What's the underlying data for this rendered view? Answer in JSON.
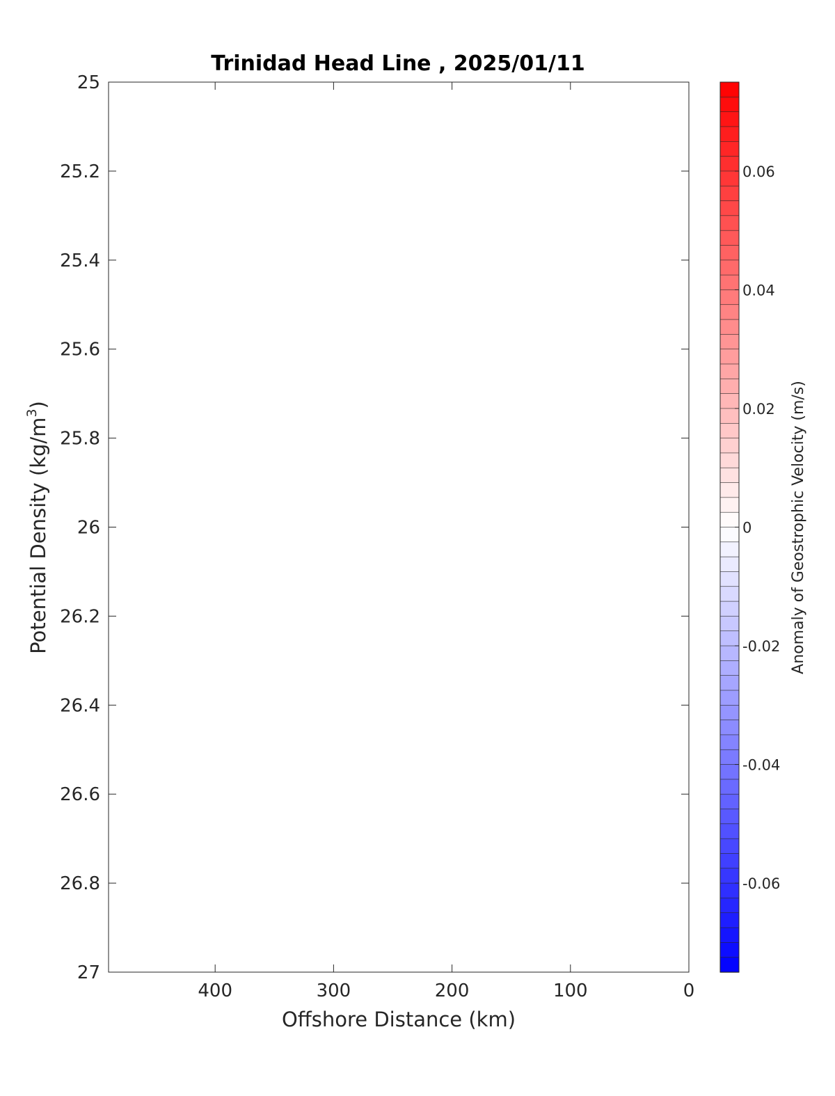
{
  "chart_data": {
    "type": "heatmap",
    "title": "Trinidad Head Line , 2025/01/11",
    "xlabel": "Offshore Distance (km)",
    "ylabel_main": "Potential Density (kg/m",
    "ylabel_sup": "3",
    "ylabel_close": ")",
    "xlim": [
      490,
      0
    ],
    "x_reversed": true,
    "xticks": [
      400,
      300,
      200,
      100,
      0
    ],
    "xtick_labels": [
      "400",
      "300",
      "200",
      "100",
      "0"
    ],
    "ylim": [
      25,
      27
    ],
    "y_reversed": true,
    "yticks": [
      25,
      25.2,
      25.4,
      25.6,
      25.8,
      26,
      26.2,
      26.4,
      26.6,
      26.8,
      27
    ],
    "ytick_labels": [
      "25",
      "25.2",
      "25.4",
      "25.6",
      "25.8",
      "26",
      "26.2",
      "26.4",
      "26.6",
      "26.8",
      "27"
    ],
    "values": [],
    "colorbar": {
      "label": "Anomaly of Geostrophic Velocity (m/s)",
      "clim": [
        -0.075,
        0.075
      ],
      "levels": 60,
      "colormap": "blue-white-red",
      "color_low": "#0000ff",
      "color_mid": "#ffffff",
      "color_high": "#ff0000",
      "ticks": [
        0.06,
        0.04,
        0.02,
        0,
        -0.02,
        -0.04,
        -0.06
      ],
      "tick_labels": [
        "0.06",
        "0.04",
        "0.02",
        "0",
        "-0.02",
        "-0.04",
        "-0.06"
      ]
    }
  }
}
